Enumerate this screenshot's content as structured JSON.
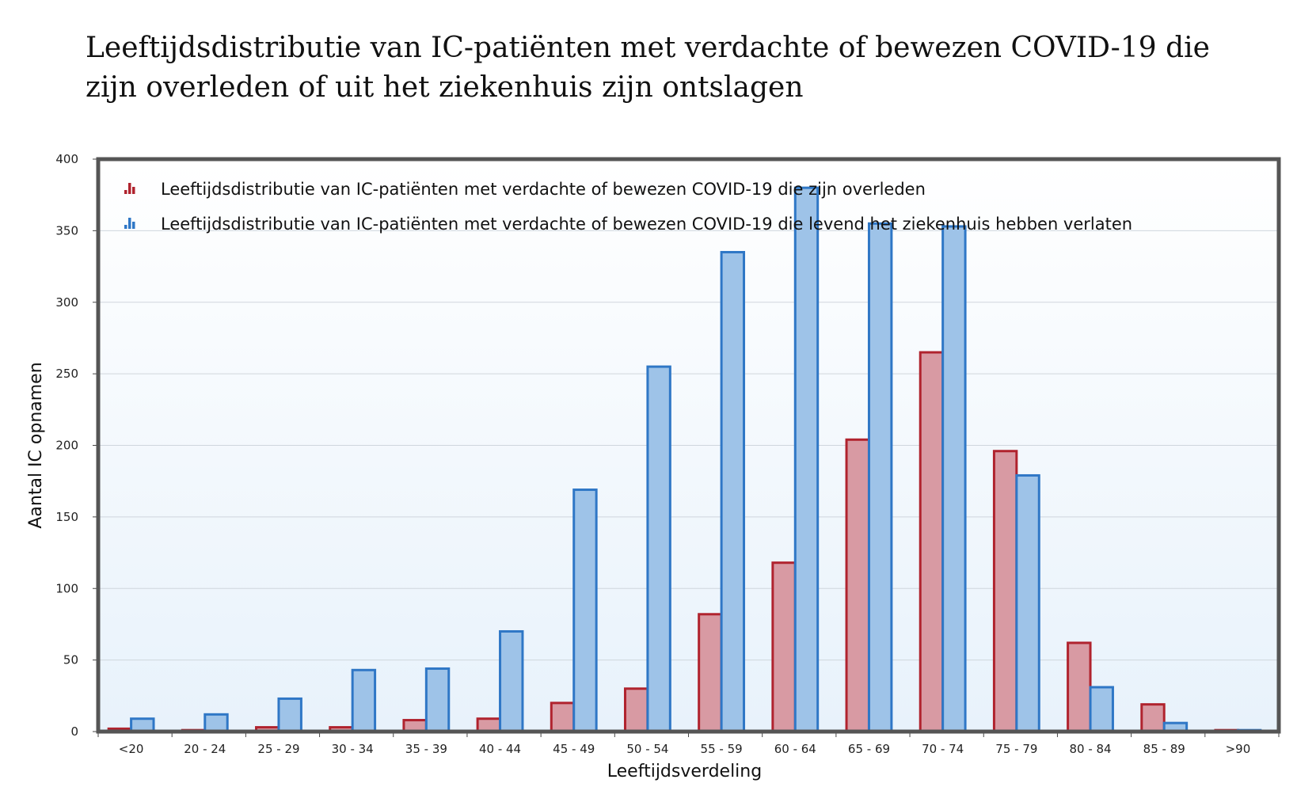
{
  "page": {
    "title_line1": "Leeftijdsdistributie van IC-patiënten met verdachte of bewezen COVID-19 die",
    "title_line2": "zijn overleden of uit het ziekenhuis zijn ontslagen"
  },
  "colors": {
    "deceased_fill": "#d89aa3",
    "deceased_stroke": "#b0232e",
    "survived_fill": "#9ec3e8",
    "survived_stroke": "#2f77c6",
    "frame": "#555555",
    "plot_bg_top": "#ffffff",
    "plot_bg_bottom": "#e8f2fb",
    "gridline": "#cfd6dd"
  },
  "chart_data": {
    "type": "bar",
    "title": "Leeftijdsdistributie van IC-patiënten met verdachte of bewezen COVID-19 die zijn overleden of uit het ziekenhuis zijn ontslagen",
    "xlabel": "Leeftijdsverdeling",
    "ylabel": "Aantal IC opnamen",
    "ylim": [
      0,
      400
    ],
    "yticks": [
      0,
      50,
      100,
      150,
      200,
      250,
      300,
      350,
      400
    ],
    "grid": true,
    "legend_position": "top-left",
    "categories": [
      "<20",
      "20 - 24",
      "25 - 29",
      "30 - 34",
      "35 - 39",
      "40 - 44",
      "45 - 49",
      "50 - 54",
      "55 - 59",
      "60 - 64",
      "65 - 69",
      "70 - 74",
      "75 - 79",
      "80 - 84",
      "85 - 89",
      ">90"
    ],
    "series": [
      {
        "name": "Leeftijdsdistributie van IC-patiënten met verdachte of bewezen COVID-19 die zijn overleden",
        "color": "#b0232e",
        "values": [
          2,
          1,
          3,
          3,
          8,
          9,
          20,
          30,
          82,
          118,
          204,
          265,
          196,
          62,
          19,
          1
        ]
      },
      {
        "name": "Leeftijdsdistributie van IC-patiënten met verdachte of bewezen COVID-19 die levend het ziekenhuis hebben verlaten",
        "color": "#2f77c6",
        "values": [
          9,
          12,
          23,
          43,
          44,
          70,
          169,
          255,
          335,
          380,
          355,
          353,
          179,
          31,
          6,
          1
        ]
      }
    ]
  }
}
